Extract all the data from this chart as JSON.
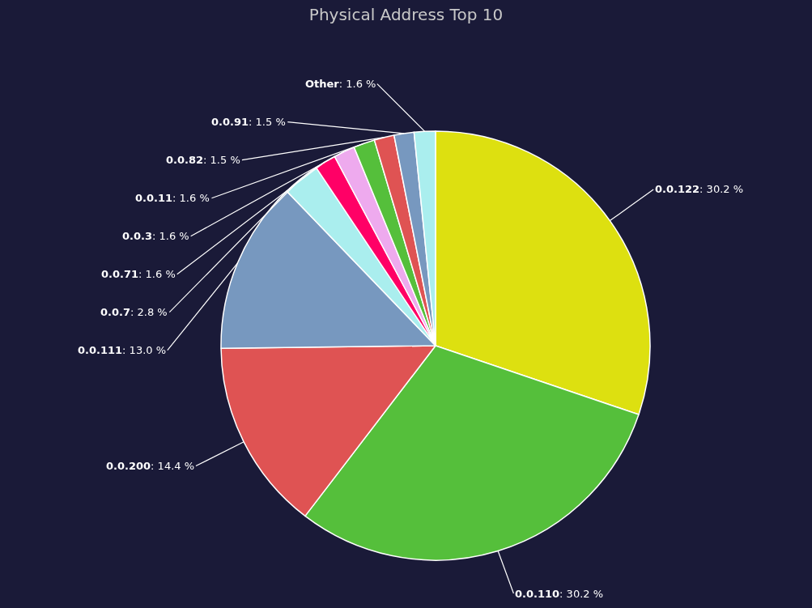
{
  "chart_data": {
    "type": "pie",
    "title": "Physical Address Top 10",
    "categories": [
      "0.0.122",
      "0.0.110",
      "0.0.200",
      "0.0.111",
      "0.0.7",
      "0.0.71",
      "0.0.3",
      "0.0.11",
      "0.0.82",
      "0.0.91",
      "Other"
    ],
    "values": [
      30.2,
      30.2,
      14.4,
      13.0,
      2.8,
      1.6,
      1.6,
      1.6,
      1.5,
      1.5,
      1.6
    ],
    "value_labels": [
      ": 30.2 %",
      ": 30.2 %",
      ": 14.4 %",
      ": 13.0 %",
      ": 2.8 %",
      ": 1.6 %",
      ": 1.6 %",
      ": 1.6 %",
      ": 1.5 %",
      ": 1.5 %",
      ": 1.6 %"
    ],
    "colors": [
      "#dde010",
      "#55bf3b",
      "#df5353",
      "#7798bf",
      "#aaeeee",
      "#ff0066",
      "#eeaaee",
      "#55bf3b",
      "#df5353",
      "#7798bf",
      "#aaeeee"
    ],
    "legend": false
  }
}
